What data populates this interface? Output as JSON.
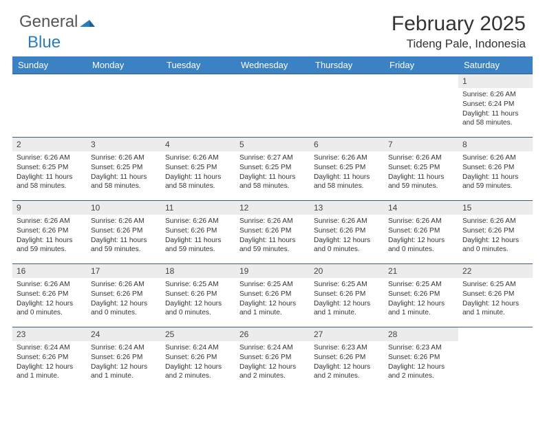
{
  "logo": {
    "part1": "General",
    "part2": "Blue"
  },
  "title": "February 2025",
  "location": "Tideng Pale, Indonesia",
  "colors": {
    "header_bg": "#3a82c4",
    "header_text": "#ffffff",
    "row_border": "#3a5a80",
    "daynum_bg": "#ececec",
    "logo_accent": "#2a7bbf",
    "page_bg": "#ffffff"
  },
  "day_names": [
    "Sunday",
    "Monday",
    "Tuesday",
    "Wednesday",
    "Thursday",
    "Friday",
    "Saturday"
  ],
  "weeks": [
    [
      null,
      null,
      null,
      null,
      null,
      null,
      {
        "n": "1",
        "sunrise": "6:26 AM",
        "sunset": "6:24 PM",
        "daylight": "11 hours and 58 minutes."
      }
    ],
    [
      {
        "n": "2",
        "sunrise": "6:26 AM",
        "sunset": "6:25 PM",
        "daylight": "11 hours and 58 minutes."
      },
      {
        "n": "3",
        "sunrise": "6:26 AM",
        "sunset": "6:25 PM",
        "daylight": "11 hours and 58 minutes."
      },
      {
        "n": "4",
        "sunrise": "6:26 AM",
        "sunset": "6:25 PM",
        "daylight": "11 hours and 58 minutes."
      },
      {
        "n": "5",
        "sunrise": "6:27 AM",
        "sunset": "6:25 PM",
        "daylight": "11 hours and 58 minutes."
      },
      {
        "n": "6",
        "sunrise": "6:26 AM",
        "sunset": "6:25 PM",
        "daylight": "11 hours and 58 minutes."
      },
      {
        "n": "7",
        "sunrise": "6:26 AM",
        "sunset": "6:25 PM",
        "daylight": "11 hours and 59 minutes."
      },
      {
        "n": "8",
        "sunrise": "6:26 AM",
        "sunset": "6:26 PM",
        "daylight": "11 hours and 59 minutes."
      }
    ],
    [
      {
        "n": "9",
        "sunrise": "6:26 AM",
        "sunset": "6:26 PM",
        "daylight": "11 hours and 59 minutes."
      },
      {
        "n": "10",
        "sunrise": "6:26 AM",
        "sunset": "6:26 PM",
        "daylight": "11 hours and 59 minutes."
      },
      {
        "n": "11",
        "sunrise": "6:26 AM",
        "sunset": "6:26 PM",
        "daylight": "11 hours and 59 minutes."
      },
      {
        "n": "12",
        "sunrise": "6:26 AM",
        "sunset": "6:26 PM",
        "daylight": "11 hours and 59 minutes."
      },
      {
        "n": "13",
        "sunrise": "6:26 AM",
        "sunset": "6:26 PM",
        "daylight": "12 hours and 0 minutes."
      },
      {
        "n": "14",
        "sunrise": "6:26 AM",
        "sunset": "6:26 PM",
        "daylight": "12 hours and 0 minutes."
      },
      {
        "n": "15",
        "sunrise": "6:26 AM",
        "sunset": "6:26 PM",
        "daylight": "12 hours and 0 minutes."
      }
    ],
    [
      {
        "n": "16",
        "sunrise": "6:26 AM",
        "sunset": "6:26 PM",
        "daylight": "12 hours and 0 minutes."
      },
      {
        "n": "17",
        "sunrise": "6:26 AM",
        "sunset": "6:26 PM",
        "daylight": "12 hours and 0 minutes."
      },
      {
        "n": "18",
        "sunrise": "6:25 AM",
        "sunset": "6:26 PM",
        "daylight": "12 hours and 0 minutes."
      },
      {
        "n": "19",
        "sunrise": "6:25 AM",
        "sunset": "6:26 PM",
        "daylight": "12 hours and 1 minute."
      },
      {
        "n": "20",
        "sunrise": "6:25 AM",
        "sunset": "6:26 PM",
        "daylight": "12 hours and 1 minute."
      },
      {
        "n": "21",
        "sunrise": "6:25 AM",
        "sunset": "6:26 PM",
        "daylight": "12 hours and 1 minute."
      },
      {
        "n": "22",
        "sunrise": "6:25 AM",
        "sunset": "6:26 PM",
        "daylight": "12 hours and 1 minute."
      }
    ],
    [
      {
        "n": "23",
        "sunrise": "6:24 AM",
        "sunset": "6:26 PM",
        "daylight": "12 hours and 1 minute."
      },
      {
        "n": "24",
        "sunrise": "6:24 AM",
        "sunset": "6:26 PM",
        "daylight": "12 hours and 1 minute."
      },
      {
        "n": "25",
        "sunrise": "6:24 AM",
        "sunset": "6:26 PM",
        "daylight": "12 hours and 2 minutes."
      },
      {
        "n": "26",
        "sunrise": "6:24 AM",
        "sunset": "6:26 PM",
        "daylight": "12 hours and 2 minutes."
      },
      {
        "n": "27",
        "sunrise": "6:23 AM",
        "sunset": "6:26 PM",
        "daylight": "12 hours and 2 minutes."
      },
      {
        "n": "28",
        "sunrise": "6:23 AM",
        "sunset": "6:26 PM",
        "daylight": "12 hours and 2 minutes."
      },
      null
    ]
  ],
  "labels": {
    "sunrise": "Sunrise:",
    "sunset": "Sunset:",
    "daylight": "Daylight:"
  }
}
